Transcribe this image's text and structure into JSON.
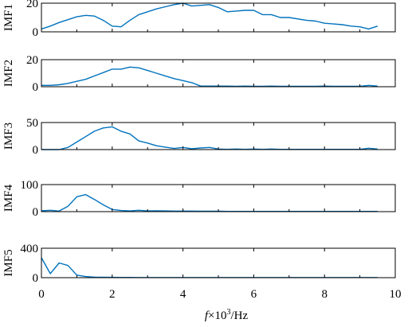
{
  "chart_data": [
    {
      "type": "line",
      "ylabel": "IMF1",
      "ylim": [
        0,
        20
      ],
      "yticks": [
        "20",
        "0"
      ],
      "series": [
        {
          "x": [
            0,
            0.25,
            0.5,
            0.75,
            1.0,
            1.25,
            1.5,
            1.75,
            2.0,
            2.25,
            2.5,
            2.75,
            3.0,
            3.25,
            3.5,
            3.75,
            4.0,
            4.25,
            4.5,
            4.75,
            5.0,
            5.25,
            5.5,
            5.75,
            6.0,
            6.25,
            6.5,
            6.75,
            7.0,
            7.25,
            7.5,
            7.75,
            8.0,
            8.25,
            8.5,
            8.75,
            9.0,
            9.25,
            9.5
          ],
          "y": [
            2,
            4,
            6.5,
            8.5,
            10.5,
            11.5,
            11,
            8,
            4,
            3.5,
            8,
            12,
            14,
            16,
            17.5,
            19,
            20,
            18,
            18.5,
            19,
            17,
            14,
            14.5,
            15,
            15,
            12,
            12,
            10,
            10,
            9,
            8,
            7.5,
            6,
            5.5,
            5,
            4,
            3.5,
            2,
            4
          ]
        }
      ]
    },
    {
      "type": "line",
      "ylabel": "IMF2",
      "ylim": [
        0,
        20
      ],
      "yticks": [
        "20",
        "0"
      ],
      "series": [
        {
          "x": [
            0,
            0.25,
            0.5,
            0.75,
            1.0,
            1.25,
            1.5,
            1.75,
            2.0,
            2.25,
            2.5,
            2.75,
            3.0,
            3.25,
            3.5,
            3.75,
            4.0,
            4.25,
            4.5,
            4.75,
            5.0,
            5.25,
            5.5,
            5.75,
            6.0,
            6.25,
            6.5,
            6.75,
            7.0,
            7.25,
            7.5,
            7.75,
            8.0,
            8.25,
            8.5,
            8.75,
            9.0,
            9.25,
            9.5
          ],
          "y": [
            1,
            1,
            1.5,
            2.5,
            4,
            5.5,
            8,
            10.5,
            13,
            13,
            14.5,
            14,
            12,
            10,
            8,
            6,
            4.5,
            3,
            0.5,
            0.5,
            0.5,
            0.5,
            0.3,
            0.5,
            0.3,
            0.3,
            0.5,
            0.3,
            0.3,
            0.3,
            0.3,
            0.3,
            0.5,
            0.3,
            0.3,
            0.3,
            0.3,
            1,
            0.5
          ]
        }
      ]
    },
    {
      "type": "line",
      "ylabel": "IMF3",
      "ylim": [
        0,
        50
      ],
      "yticks": [
        "50",
        "0"
      ],
      "series": [
        {
          "x": [
            0,
            0.25,
            0.5,
            0.75,
            1.0,
            1.25,
            1.5,
            1.75,
            2.0,
            2.25,
            2.5,
            2.75,
            3.0,
            3.25,
            3.5,
            3.75,
            4.0,
            4.25,
            4.5,
            4.75,
            5.0,
            5.25,
            5.5,
            5.75,
            6.0,
            6.25,
            6.5,
            6.75,
            7.0,
            7.25,
            7.5,
            7.75,
            8.0,
            8.25,
            8.5,
            8.75,
            9.0,
            9.25,
            9.5
          ],
          "y": [
            0,
            0,
            0,
            4,
            14,
            24,
            34,
            40,
            42,
            34,
            29,
            16,
            12,
            7,
            4.5,
            2,
            4,
            1.5,
            3,
            4,
            1,
            0.5,
            1,
            0.5,
            1,
            0.5,
            1,
            0.5,
            0.5,
            0.5,
            0.5,
            0.5,
            0.5,
            0.5,
            0.5,
            0.5,
            0.5,
            2.5,
            1
          ]
        }
      ]
    },
    {
      "type": "line",
      "ylabel": "IMF4",
      "ylim": [
        0,
        100
      ],
      "yticks": [
        "100",
        "0"
      ],
      "series": [
        {
          "x": [
            0,
            0.25,
            0.5,
            0.75,
            1.0,
            1.25,
            1.5,
            1.75,
            2.0,
            2.25,
            2.5,
            2.75,
            3.0,
            3.25,
            3.5,
            3.75,
            4.0,
            4.25,
            4.5,
            4.75,
            5.0,
            5.25,
            5.5,
            5.75,
            6.0,
            6.25,
            6.5,
            6.75,
            7.0,
            7.25,
            7.5,
            7.75,
            8.0,
            8.25,
            8.5,
            8.75,
            9.0,
            9.25,
            9.5
          ],
          "y": [
            3,
            5,
            2,
            20,
            55,
            63,
            45,
            25,
            8,
            4,
            2.5,
            5,
            2.5,
            3,
            2.5,
            2,
            2,
            2,
            1.5,
            1.5,
            1.5,
            1,
            1,
            1,
            1,
            1,
            1,
            1,
            1,
            1,
            1,
            1,
            1,
            1,
            1,
            1,
            1,
            1,
            1
          ]
        }
      ]
    },
    {
      "type": "line",
      "ylabel": "IMF5",
      "ylim": [
        0,
        400
      ],
      "yticks": [
        "400",
        "0"
      ],
      "series": [
        {
          "x": [
            0,
            0.25,
            0.5,
            0.75,
            1.0,
            1.25,
            1.5,
            1.75,
            2.0,
            2.25,
            2.5,
            2.75,
            3.0,
            3.25,
            3.5,
            3.75,
            4.0,
            4.25,
            4.5,
            4.75,
            5.0,
            5.25,
            5.5,
            5.75,
            6.0,
            6.25,
            6.5,
            6.75,
            7.0,
            7.25,
            7.5,
            7.75,
            8.0,
            8.25,
            8.5,
            8.75,
            9.0,
            9.25,
            9.5
          ],
          "y": [
            270,
            55,
            200,
            165,
            35,
            15,
            8,
            5,
            4,
            3,
            3,
            2,
            2,
            2,
            2,
            2,
            2,
            2,
            2,
            2,
            2,
            2,
            2,
            2,
            2,
            2,
            2,
            2,
            2,
            2,
            2,
            2,
            2,
            2,
            2,
            2,
            2,
            2,
            2
          ]
        }
      ]
    }
  ],
  "xaxis": {
    "xlim": [
      0,
      10
    ],
    "ticks": [
      {
        "value": 0,
        "label": "0"
      },
      {
        "value": 2,
        "label": "2"
      },
      {
        "value": 4,
        "label": "4"
      },
      {
        "value": 6,
        "label": "6"
      },
      {
        "value": 8,
        "label": "8"
      },
      {
        "value": 10,
        "label": "10"
      }
    ],
    "minor_ticks": [
      1,
      3,
      5,
      7,
      9
    ],
    "xlabel_italic": "f",
    "xlabel_mid": "×10",
    "xlabel_sup": "3",
    "xlabel_tail": "/Hz"
  },
  "colors": {
    "line": "#0072BD",
    "axes": "#000000"
  }
}
